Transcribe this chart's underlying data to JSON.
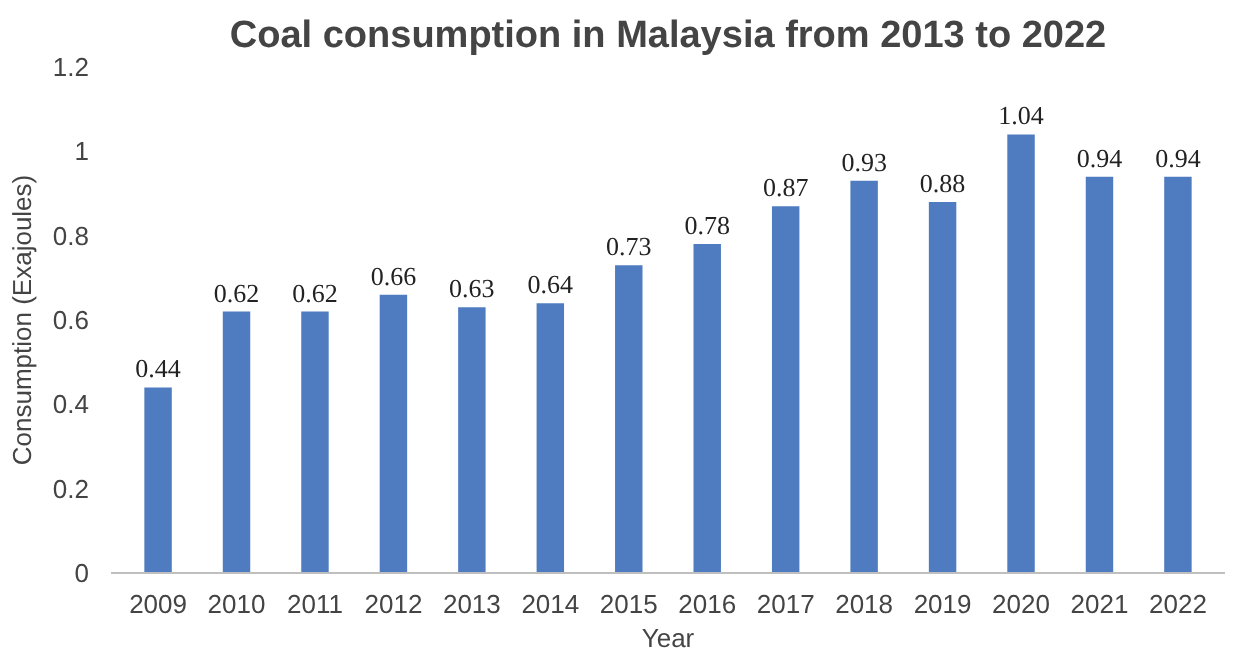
{
  "chart_data": {
    "type": "bar",
    "title": "Coal consumption in Malaysia from 2013 to 2022",
    "xlabel": "Year",
    "ylabel": "Consumption (Exajoules)",
    "categories": [
      "2009",
      "2010",
      "2011",
      "2012",
      "2013",
      "2014",
      "2015",
      "2016",
      "2017",
      "2018",
      "2019",
      "2020",
      "2021",
      "2022"
    ],
    "values": [
      0.44,
      0.62,
      0.62,
      0.66,
      0.63,
      0.64,
      0.73,
      0.78,
      0.87,
      0.93,
      0.88,
      1.04,
      0.94,
      0.94
    ],
    "color": "#4f7cc0",
    "ylim": [
      0,
      1.2
    ],
    "yticks": [
      0,
      0.2,
      0.4,
      0.6,
      0.8,
      1,
      1.2
    ],
    "grid": false,
    "data_labels": true
  }
}
